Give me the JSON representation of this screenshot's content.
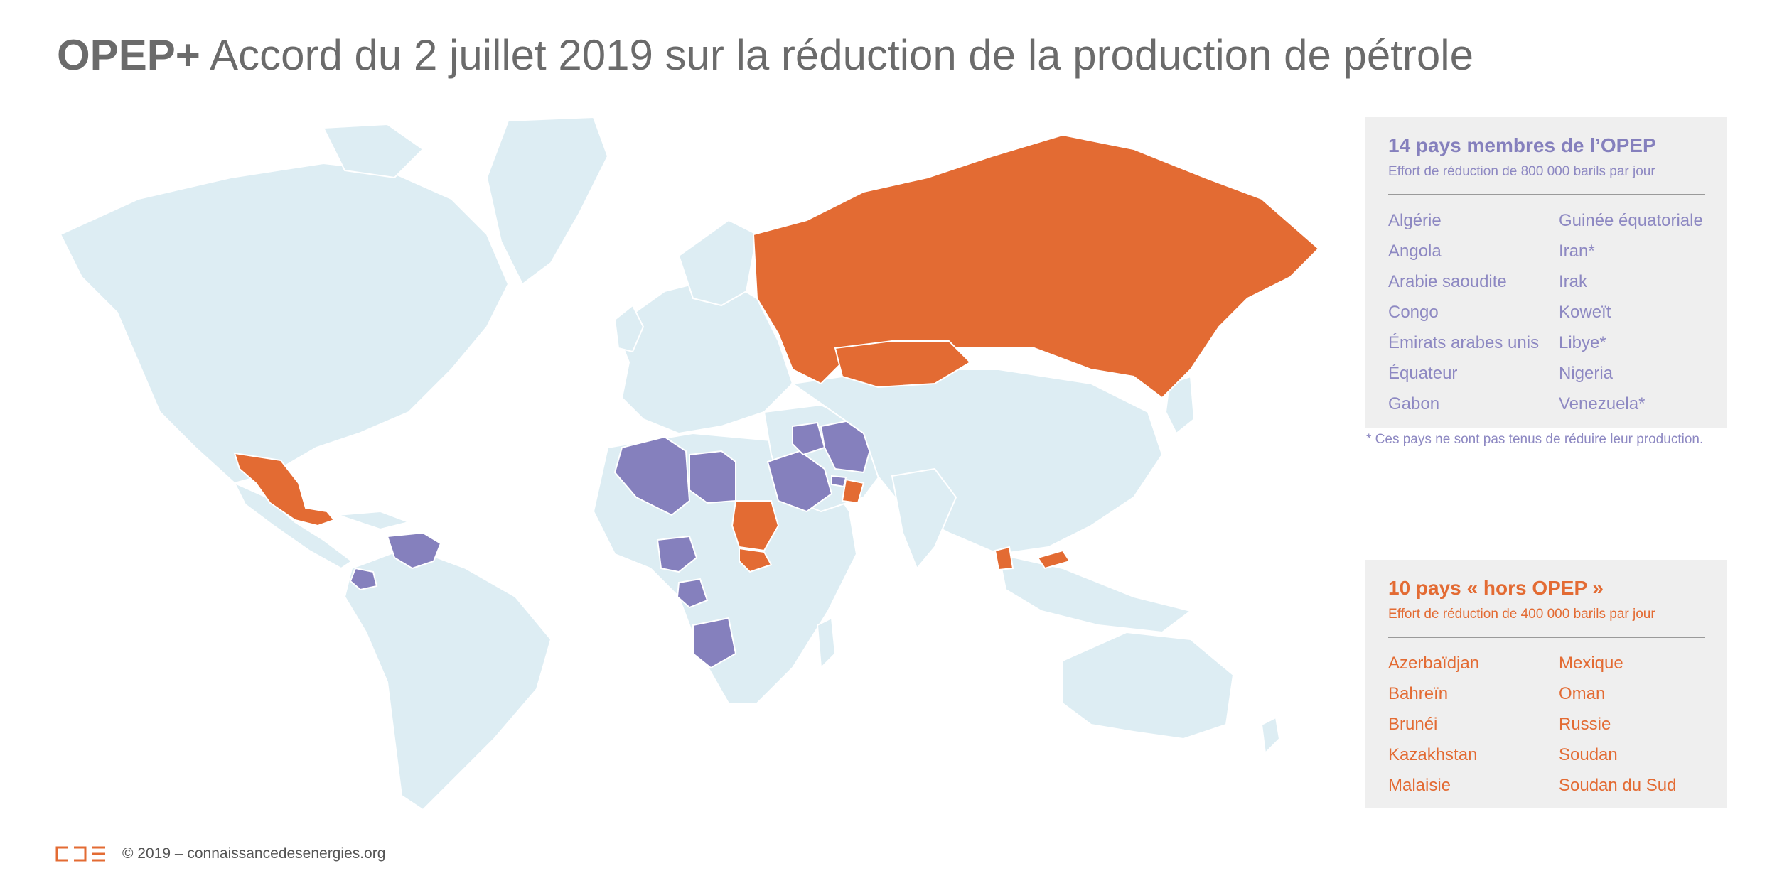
{
  "title": {
    "bold": "OPEP+",
    "rest": " Accord du 2 juillet 2019 sur la réduction de la production de pétrole"
  },
  "colors": {
    "opec": "#8580bd",
    "non_opec": "#e36b33",
    "land": "#ddedf3",
    "panel_bg": "#efefef"
  },
  "opec_panel": {
    "heading": "14 pays membres de l’OPEP",
    "subtitle": "Effort de réduction de 800 000 barils par jour",
    "countries": [
      "Algérie",
      "Guinée équatoriale",
      "Angola",
      "Iran*",
      "Arabie saoudite",
      "Irak",
      "Congo",
      "Koweït",
      "Émirats arabes unis",
      "Libye*",
      "Équateur",
      "Nigeria",
      "Gabon",
      "Venezuela*"
    ],
    "footnote": "* Ces pays ne sont pas tenus de réduire leur production."
  },
  "non_opec_panel": {
    "heading": "10 pays « hors OPEP »",
    "subtitle": "Effort de réduction de 400 000 barils par jour",
    "countries": [
      "Azerbaïdjan",
      "Mexique",
      "Bahreïn",
      "Oman",
      "Brunéi",
      "Russie",
      "Kazakhstan",
      "Soudan",
      "Malaisie",
      "Soudan du Sud"
    ]
  },
  "footer": {
    "copyright": "© 2019 – connaissancedesenergies.org",
    "logo_icon": "cde-logo-icon"
  }
}
